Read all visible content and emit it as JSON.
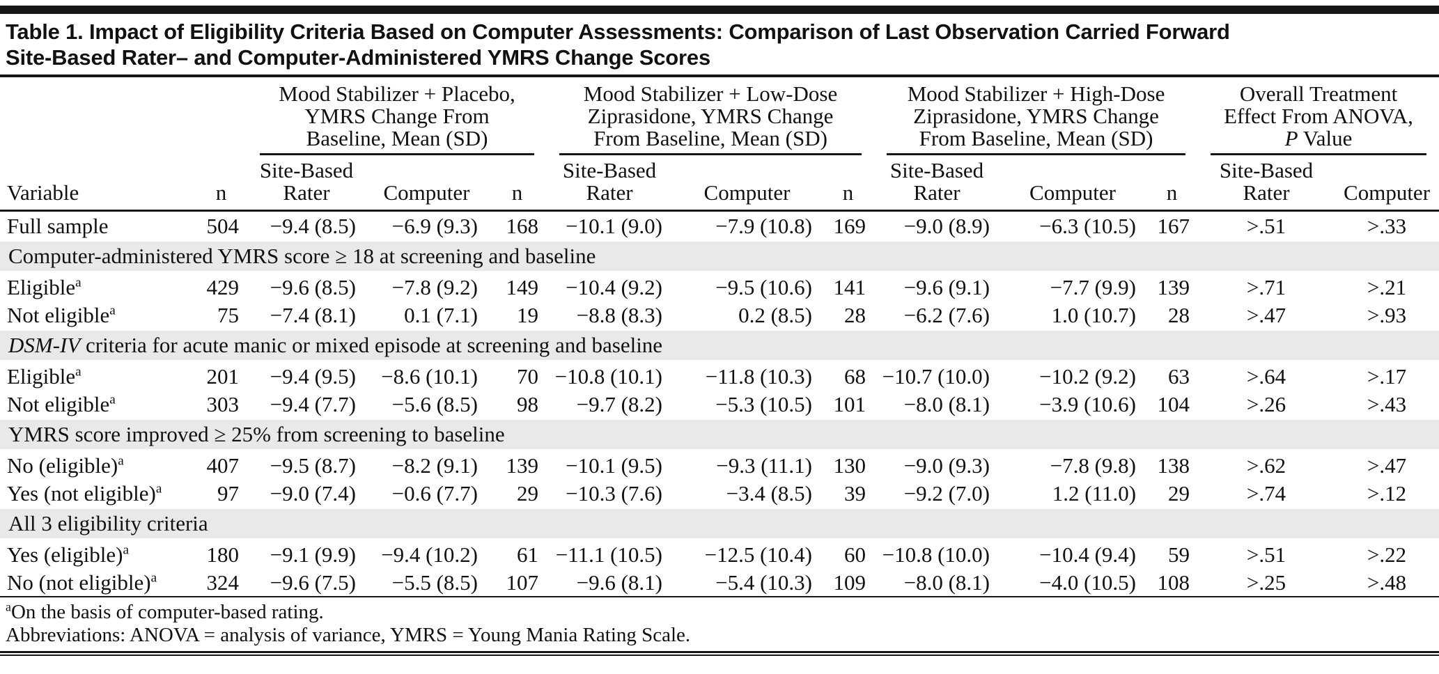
{
  "colors": {
    "section_band": "#e9e9e9",
    "rule": "#161616",
    "text": "#111111"
  },
  "table": {
    "title_lines": [
      "Table 1. Impact of Eligibility Criteria Based on Computer Assessments: Comparison of Last Observation Carried Forward",
      "Site-Based Rater– and Computer-Administered YMRS Change Scores"
    ],
    "group_headers": [
      {
        "span": 3,
        "lines": [
          "Mood Stabilizer + Placebo,",
          "YMRS Change From",
          "Baseline, Mean (SD)"
        ]
      },
      {
        "span": 3,
        "lines": [
          "Mood Stabilizer + Low-Dose",
          "Ziprasidone, YMRS Change",
          "From Baseline, Mean (SD)"
        ]
      },
      {
        "span": 3,
        "lines": [
          "Mood Stabilizer + High-Dose",
          "Ziprasidone, YMRS Change",
          "From Baseline, Mean (SD)"
        ]
      },
      {
        "span": 2,
        "lines": [
          "Overall Treatment",
          "Effect From ANOVA,",
          {
            "italic": "P",
            "text": " Value"
          }
        ]
      }
    ],
    "columns": [
      "Variable",
      "n",
      "Site-Based Rater",
      "Computer",
      "n",
      "Site-Based Rater",
      "Computer",
      "n",
      "Site-Based Rater",
      "Computer",
      "n",
      "Site-Based Rater",
      "Computer"
    ],
    "sections": [
      {
        "rows": [
          {
            "label": "Full sample",
            "cells": [
              "504",
              "−9.4 (8.5)",
              "−6.9 (9.3)",
              "168",
              "−10.1 (9.0)",
              "−7.9 (10.8)",
              "169",
              "−9.0 (8.9)",
              "−6.3 (10.5)",
              "167",
              ">.51",
              ">.33"
            ]
          }
        ]
      },
      {
        "heading": {
          "text": "Computer-administered YMRS score ≥ 18 at screening and baseline"
        },
        "rows": [
          {
            "label": "Eligible",
            "sup": "a",
            "cells": [
              "429",
              "−9.6 (8.5)",
              "−7.8 (9.2)",
              "149",
              "−10.4 (9.2)",
              "−9.5 (10.6)",
              "141",
              "−9.6 (9.1)",
              "−7.7 (9.9)",
              "139",
              ">.71",
              ">.21"
            ]
          },
          {
            "label": "Not eligible",
            "sup": "a",
            "cells": [
              "75",
              "−7.4 (8.1)",
              "0.1 (7.1)",
              "19",
              "−8.8 (8.3)",
              "0.2 (8.5)",
              "28",
              "−6.2 (7.6)",
              "1.0 (10.7)",
              "28",
              ">.47",
              ">.93"
            ]
          }
        ]
      },
      {
        "heading": {
          "italic": "DSM-IV",
          "text": " criteria for acute manic or mixed episode at screening and baseline"
        },
        "rows": [
          {
            "label": "Eligible",
            "sup": "a",
            "cells": [
              "201",
              "−9.4 (9.5)",
              "−8.6 (10.1)",
              "70",
              "−10.8 (10.1)",
              "−11.8 (10.3)",
              "68",
              "−10.7 (10.0)",
              "−10.2 (9.2)",
              "63",
              ">.64",
              ">.17"
            ]
          },
          {
            "label": "Not eligible",
            "sup": "a",
            "cells": [
              "303",
              "−9.4 (7.7)",
              "−5.6 (8.5)",
              "98",
              "−9.7 (8.2)",
              "−5.3 (10.5)",
              "101",
              "−8.0 (8.1)",
              "−3.9 (10.6)",
              "104",
              ">.26",
              ">.43"
            ]
          }
        ]
      },
      {
        "heading": {
          "text": "YMRS score improved ≥ 25% from screening to baseline"
        },
        "rows": [
          {
            "label": "No (eligible)",
            "sup": "a",
            "cells": [
              "407",
              "−9.5 (8.7)",
              "−8.2 (9.1)",
              "139",
              "−10.1 (9.5)",
              "−9.3 (11.1)",
              "130",
              "−9.0 (9.3)",
              "−7.8 (9.8)",
              "138",
              ">.62",
              ">.47"
            ]
          },
          {
            "label": "Yes (not eligible)",
            "sup": "a",
            "cells": [
              "97",
              "−9.0 (7.4)",
              "−0.6 (7.7)",
              "29",
              "−10.3 (7.6)",
              "−3.4 (8.5)",
              "39",
              "−9.2 (7.0)",
              "1.2 (11.0)",
              "29",
              ">.74",
              ">.12"
            ]
          }
        ]
      },
      {
        "heading": {
          "text": "All 3 eligibility criteria"
        },
        "rows": [
          {
            "label": "Yes (eligible)",
            "sup": "a",
            "cells": [
              "180",
              "−9.1 (9.9)",
              "−9.4 (10.2)",
              "61",
              "−11.1 (10.5)",
              "−12.5 (10.4)",
              "60",
              "−10.8 (10.0)",
              "−10.4 (9.4)",
              "59",
              ">.51",
              ">.22"
            ]
          },
          {
            "label": "No (not eligible)",
            "sup": "a",
            "cells": [
              "324",
              "−9.6 (7.5)",
              "−5.5 (8.5)",
              "107",
              "−9.6 (8.1)",
              "−5.4 (10.3)",
              "109",
              "−8.0 (8.1)",
              "−4.0 (10.5)",
              "108",
              ">.25",
              ">.48"
            ]
          }
        ]
      }
    ],
    "footnotes": [
      {
        "sup": "a",
        "text": "On the basis of computer-based rating."
      },
      {
        "text": "Abbreviations: ANOVA = analysis of variance, YMRS = Young Mania Rating Scale."
      }
    ]
  }
}
